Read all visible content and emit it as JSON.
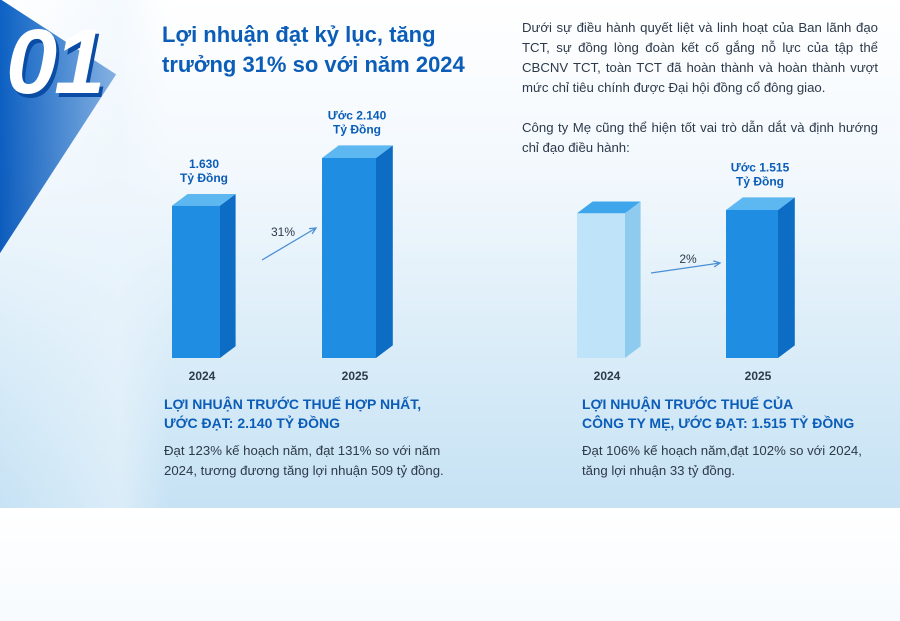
{
  "section_number": "01",
  "title_lines": [
    "Lợi nhuận đạt kỷ lục, tăng",
    "trưởng 31% so với năm 2024"
  ],
  "intro": "Dưới sự điều hành quyết liệt và linh hoạt của Ban lãnh đạo TCT, sự đồng lòng đoàn kết cố gắng nỗ lực của tập thể CBCNV TCT, toàn TCT đã hoàn thành và hoàn thành vượt mức chỉ tiêu chính được Đại hội đồng cổ đông giao.",
  "intro2": "Công ty Mẹ cũng thể hiện tốt vai trò dẫn dắt và định hướng chỉ đạo điều hành:",
  "colors": {
    "accent": "#0b5db8",
    "bar_front": "#1f8ee2",
    "bar_side": "#0d6cc4",
    "bar_top": "#5db8f2",
    "stripe": "#0a4fae"
  },
  "chart_data": [
    {
      "type": "bar",
      "categories": [
        "2024",
        "2025"
      ],
      "values": [
        1630,
        2140
      ],
      "unit": "Tỷ Đồng",
      "value_labels": [
        [
          "1.630",
          "Tỷ Đồng"
        ],
        [
          "Ước 2.140",
          "Tỷ Đồng"
        ]
      ],
      "growth_label": "31%",
      "ylim": [
        0,
        2140
      ],
      "heading_lines": [
        "LỢI NHUẬN TRƯỚC THUẾ HỢP NHẤT,",
        "ƯỚC ĐẠT: 2.140 TỶ ĐỒNG"
      ],
      "description": "Đạt 123% kế hoạch năm, đạt 131% so với năm 2024, tương đương tăng lợi nhuận 509 tỷ đồng."
    },
    {
      "type": "bar",
      "categories": [
        "2024",
        "2025"
      ],
      "values": [
        1482,
        1515
      ],
      "unit": "Tỷ Đồng",
      "value_labels": [
        [],
        [
          "Ước 1.515",
          "Tỷ Đồng"
        ]
      ],
      "growth_label": "2%",
      "ylim": [
        0,
        1515
      ],
      "heading_lines": [
        "LỢI NHUẬN TRƯỚC THUẾ CỦA",
        "CÔNG TY MẸ, ƯỚC ĐẠT: 1.515 TỶ ĐỒNG"
      ],
      "description": "Đạt 106% kế hoạch năm,đạt 102% so với 2024, tăng lợi nhuận 33 tỷ đồng."
    }
  ]
}
